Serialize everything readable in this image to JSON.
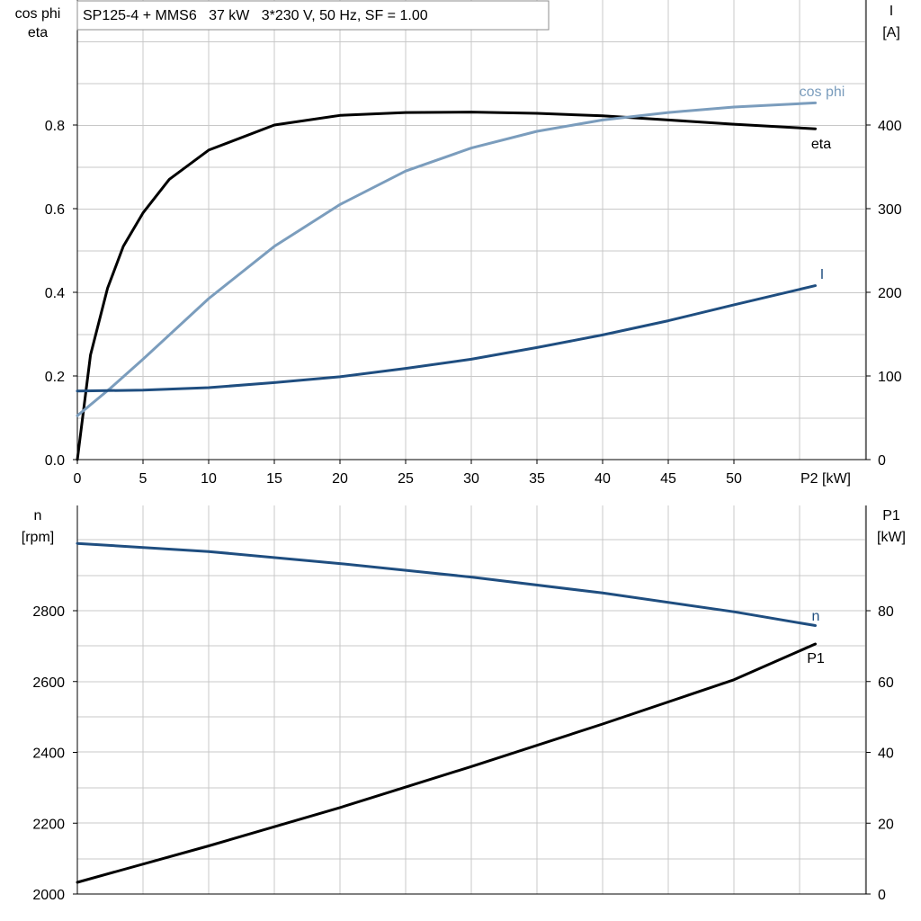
{
  "header": {
    "title": "SP125-4 + MMS6   37 kW   3*230 V, 50 Hz, SF = 1.00"
  },
  "colors": {
    "black": "#000000",
    "dark_blue": "#1f4e80",
    "light_blue": "#7b9dbd",
    "grid": "#c8c8c8"
  },
  "chart_data": [
    {
      "type": "line",
      "title": "",
      "xlabel": "P2 [kW]",
      "ylabel_left": [
        "cos phi",
        "eta"
      ],
      "ylabel_right": [
        "I",
        "[A]"
      ],
      "xlim": [
        0,
        60
      ],
      "ylim_left": [
        0,
        1.0
      ],
      "ylim_right": [
        0,
        500
      ],
      "x_ticks": [
        0,
        5,
        10,
        15,
        20,
        25,
        30,
        35,
        40,
        45,
        50
      ],
      "x_tick_labels": [
        "0",
        "5",
        "10",
        "15",
        "20",
        "25",
        "30",
        "35",
        "40",
        "45",
        "50"
      ],
      "y_left_ticks": [
        0.0,
        0.2,
        0.4,
        0.6,
        0.8
      ],
      "y_left_tick_labels": [
        "0.0",
        "0.2",
        "0.4",
        "0.6",
        "0.8"
      ],
      "y_right_ticks": [
        0,
        100,
        200,
        300,
        400
      ],
      "y_right_tick_labels": [
        "0",
        "100",
        "200",
        "300",
        "400"
      ],
      "grid": true,
      "series": [
        {
          "name": "eta",
          "axis": "left",
          "color": "#000000",
          "x": [
            0,
            1,
            2.3,
            3.5,
            5,
            7,
            10,
            15,
            20,
            25,
            30,
            35,
            40,
            45,
            50,
            56.2
          ],
          "y": [
            0,
            0.25,
            0.41,
            0.51,
            0.59,
            0.67,
            0.74,
            0.8,
            0.823,
            0.83,
            0.831,
            0.828,
            0.822,
            0.812,
            0.802,
            0.791
          ]
        },
        {
          "name": "cos phi",
          "axis": "left",
          "color": "#7b9dbd",
          "x": [
            0,
            2.5,
            5,
            10,
            15,
            20,
            25,
            30,
            35,
            40,
            45,
            50,
            56.2
          ],
          "y": [
            0.105,
            0.17,
            0.24,
            0.385,
            0.51,
            0.61,
            0.69,
            0.745,
            0.785,
            0.812,
            0.83,
            0.843,
            0.853
          ]
        },
        {
          "name": "I",
          "axis": "right",
          "color": "#1f4e80",
          "x": [
            0,
            5,
            10,
            15,
            20,
            25,
            30,
            35,
            40,
            45,
            50,
            56.2
          ],
          "y": [
            82,
            83,
            86,
            92,
            99,
            109,
            120,
            134,
            149,
            166,
            185,
            208
          ]
        }
      ]
    },
    {
      "type": "line",
      "title": "",
      "xlabel": "",
      "ylabel_left": [
        "n",
        "[rpm]"
      ],
      "ylabel_right": [
        "P1",
        "[kW]"
      ],
      "xlim": [
        0,
        60
      ],
      "ylim_left": [
        2000,
        3000
      ],
      "ylim_right": [
        0,
        100
      ],
      "y_left_ticks": [
        2000,
        2200,
        2400,
        2600,
        2800
      ],
      "y_left_tick_labels": [
        "2000",
        "2200",
        "2400",
        "2600",
        "2800"
      ],
      "y_right_ticks": [
        0,
        20,
        40,
        60,
        80
      ],
      "y_right_tick_labels": [
        "0",
        "20",
        "40",
        "60",
        "80"
      ],
      "grid": true,
      "series": [
        {
          "name": "n",
          "axis": "left",
          "color": "#1f4e80",
          "x": [
            0,
            10,
            20,
            30,
            40,
            50,
            56.2
          ],
          "y": [
            2990,
            2967,
            2933,
            2895,
            2850,
            2797,
            2758
          ]
        },
        {
          "name": "P1",
          "axis": "right",
          "color": "#000000",
          "x": [
            0,
            10,
            20,
            30,
            40,
            50,
            56.2
          ],
          "y": [
            3.3,
            13.6,
            24.4,
            36.0,
            48.0,
            60.5,
            70.6
          ]
        }
      ]
    }
  ]
}
